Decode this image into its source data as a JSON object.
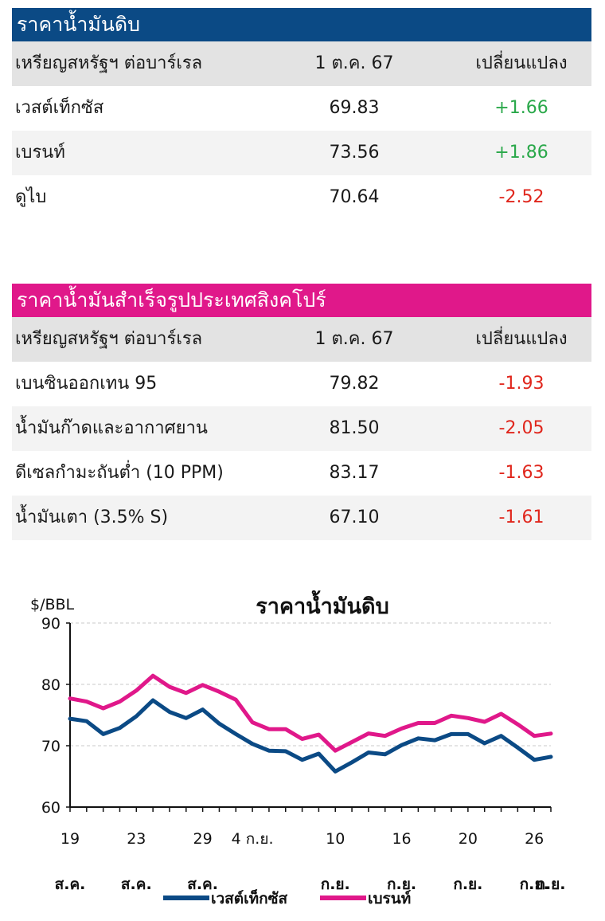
{
  "crude_table": {
    "title": "ราคาน้ำมันดิบ",
    "header": {
      "unit": "เหรียญสหรัฐฯ ต่อบาร์เรล",
      "date": "1 ต.ค. 67",
      "change": "เปลี่ยนแปลง"
    },
    "rows": [
      {
        "name": "เวสต์เท็กซัส",
        "price": "69.83",
        "change": "+1.66",
        "direction": "up"
      },
      {
        "name": "เบรนท์",
        "price": "73.56",
        "change": "+1.86",
        "direction": "up"
      },
      {
        "name": "ดูไบ",
        "price": "70.64",
        "change": "-2.52",
        "direction": "down"
      }
    ]
  },
  "products_table": {
    "title": "ราคาน้ำมันสำเร็จรูปประเทศสิงคโปร์",
    "header": {
      "unit": "เหรียญสหรัฐฯ ต่อบาร์เรล",
      "date": "1 ต.ค. 67",
      "change": "เปลี่ยนแปลง"
    },
    "rows": [
      {
        "name": "เบนซินออกเทน 95",
        "price": "79.82",
        "change": "-1.93",
        "direction": "down"
      },
      {
        "name": "น้ำมันก๊าดและอากาศยาน",
        "price": "81.50",
        "change": "-2.05",
        "direction": "down"
      },
      {
        "name": "ดีเซลกำมะถันต่ำ (10 PPM)",
        "price": "83.17",
        "change": "-1.63",
        "direction": "down"
      },
      {
        "name": "น้ำมันเตา (3.5% S)",
        "price": "67.10",
        "change": "-1.61",
        "direction": "down"
      }
    ]
  },
  "colors": {
    "blue": "#0b4a85",
    "pink": "#e0188a",
    "up": "#2aa84a",
    "down": "#e0261c"
  },
  "chart_data": {
    "type": "line",
    "title": "ราคาน้ำมันดิบ",
    "ylabel": "$/BBL",
    "ylim": [
      60,
      90
    ],
    "yticks": [
      60,
      70,
      80,
      90
    ],
    "grid": true,
    "legend_position": "bottom",
    "x": [
      "19 ส.ค.",
      "20 ส.ค.",
      "21 ส.ค.",
      "22 ส.ค.",
      "23 ส.ค.",
      "26 ส.ค.",
      "27 ส.ค.",
      "28 ส.ค.",
      "29 ส.ค.",
      "30 ส.ค.",
      "2 ก.ย.",
      "3 ก.ย.",
      "4 ก.ย.",
      "5 ก.ย.",
      "6 ก.ย.",
      "9 ก.ย.",
      "10 ก.ย.",
      "11 ก.ย.",
      "12 ก.ย.",
      "13 ก.ย.",
      "16 ก.ย.",
      "17 ก.ย.",
      "18 ก.ย.",
      "19 ก.ย.",
      "20 ก.ย.",
      "23 ก.ย.",
      "24 ก.ย.",
      "25 ก.ย.",
      "26 ก.ย.",
      "27 ก.ย."
    ],
    "x_tick_labels": [
      {
        "index": 0,
        "top": "19",
        "bottom": "ส.ค."
      },
      {
        "index": 4,
        "top": "23",
        "bottom": "ส.ค."
      },
      {
        "index": 8,
        "top": "29",
        "bottom": "ส.ค."
      },
      {
        "index": 11,
        "top": "4 ก.ย.",
        "bottom": ""
      },
      {
        "index": 16,
        "top": "10",
        "bottom": "ก.ย."
      },
      {
        "index": 20,
        "top": "16",
        "bottom": "ก.ย."
      },
      {
        "index": 24,
        "top": "20",
        "bottom": "ก.ย."
      },
      {
        "index": 28,
        "top": "26",
        "bottom": "ก.ย."
      },
      {
        "index": 29,
        "top": "",
        "bottom": "ก.ย."
      }
    ],
    "series": [
      {
        "name": "เวสต์เท็กซัส",
        "color": "#0b4a85",
        "values": [
          74.4,
          74.0,
          71.9,
          72.9,
          74.8,
          77.4,
          75.5,
          74.5,
          75.9,
          73.6,
          71.9,
          70.3,
          69.2,
          69.1,
          67.7,
          68.7,
          65.8,
          67.3,
          68.9,
          68.6,
          70.1,
          71.2,
          70.9,
          71.9,
          71.9,
          70.4,
          71.6,
          69.7,
          67.7,
          68.2
        ]
      },
      {
        "name": "เบรนท์",
        "color": "#e0188a",
        "values": [
          77.7,
          77.2,
          76.1,
          77.2,
          79.0,
          81.4,
          79.6,
          78.6,
          79.9,
          78.8,
          77.5,
          73.8,
          72.7,
          72.7,
          71.1,
          71.8,
          69.2,
          70.6,
          72.0,
          71.6,
          72.8,
          73.7,
          73.7,
          74.9,
          74.5,
          73.9,
          75.2,
          73.5,
          71.6,
          71.98
        ]
      }
    ]
  }
}
